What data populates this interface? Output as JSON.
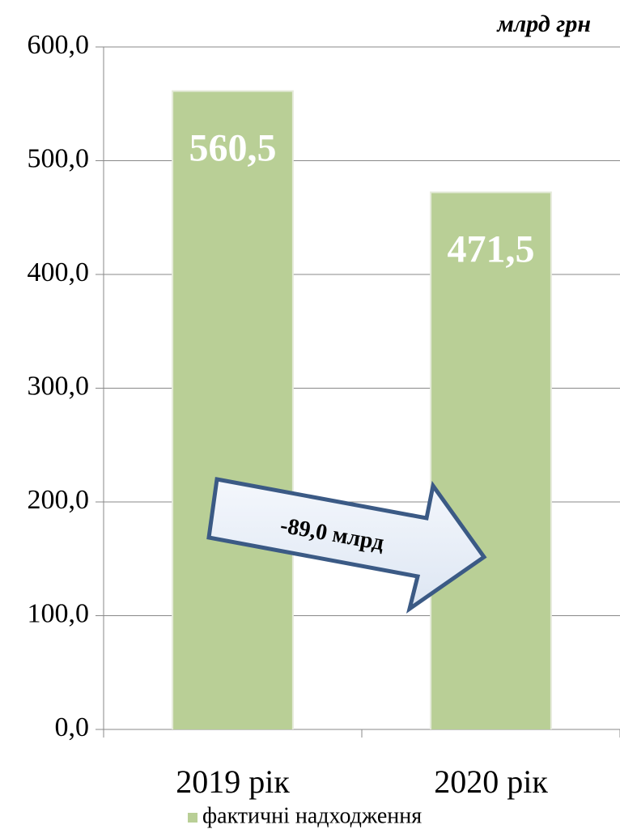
{
  "chart_data": {
    "type": "bar",
    "unit_label": "млрд грн",
    "categories": [
      "2019 рік",
      "2020 рік"
    ],
    "series": [
      {
        "name": "фактичні надходження",
        "color": "#b9cf96",
        "values": [
          560.5,
          471.5
        ],
        "value_labels": [
          "560,5",
          "471,5"
        ]
      }
    ],
    "annotation": "-89,0 млрд",
    "ylim": [
      0,
      600
    ],
    "yticks": [
      {
        "value": 0,
        "label": "0,0"
      },
      {
        "value": 100,
        "label": "100,0"
      },
      {
        "value": 200,
        "label": "200,0"
      },
      {
        "value": 300,
        "label": "300,0"
      },
      {
        "value": 400,
        "label": "400,0"
      },
      {
        "value": 500,
        "label": "500,0"
      },
      {
        "value": 600,
        "label": "600,0"
      }
    ],
    "grid": true,
    "legend": "bottom"
  }
}
